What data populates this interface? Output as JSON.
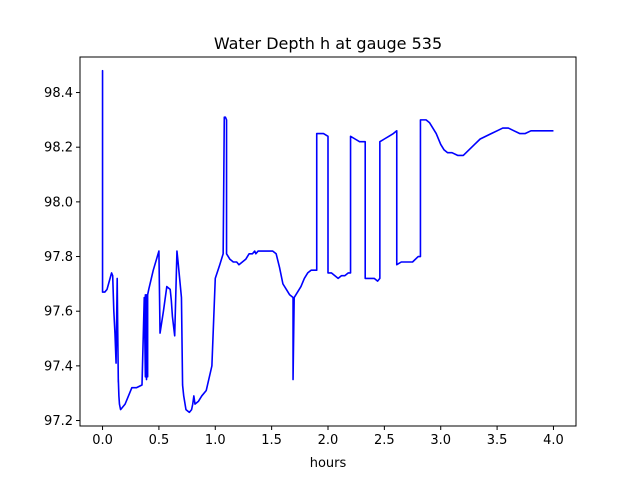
{
  "chart_data": {
    "type": "line",
    "title": "Water Depth h at gauge 535",
    "xlabel": "hours",
    "ylabel": "",
    "xlim": [
      -0.2,
      4.2
    ],
    "ylim": [
      97.18,
      98.53
    ],
    "xticks": [
      0.0,
      0.5,
      1.0,
      1.5,
      2.0,
      2.5,
      3.0,
      3.5,
      4.0
    ],
    "xtick_labels": [
      "0.0",
      "0.5",
      "1.0",
      "1.5",
      "2.0",
      "2.5",
      "3.0",
      "3.5",
      "4.0"
    ],
    "yticks": [
      97.2,
      97.4,
      97.6,
      97.8,
      98.0,
      98.2,
      98.4
    ],
    "ytick_labels": [
      "97.2",
      "97.4",
      "97.6",
      "97.8",
      "98.0",
      "98.2",
      "98.4"
    ],
    "grid": false,
    "series": [
      {
        "color": "#0000ff",
        "x": [
          0.0,
          0.0,
          0.0,
          0.0,
          0.01,
          0.02,
          0.04,
          0.06,
          0.08,
          0.09,
          0.1,
          0.11,
          0.12,
          0.13,
          0.135,
          0.14,
          0.14,
          0.145,
          0.15,
          0.16,
          0.18,
          0.2,
          0.23,
          0.26,
          0.3,
          0.35,
          0.37,
          0.38,
          0.38,
          0.39,
          0.39,
          0.4,
          0.4,
          0.41,
          0.45,
          0.5,
          0.51,
          0.51,
          0.54,
          0.57,
          0.6,
          0.61,
          0.62,
          0.64,
          0.66,
          0.66,
          0.67,
          0.7,
          0.71,
          0.71,
          0.72,
          0.74,
          0.77,
          0.79,
          0.8,
          0.81,
          0.82,
          0.85,
          0.88,
          0.92,
          0.97,
          1.0,
          1.0,
          1.04,
          1.07,
          1.08,
          1.09,
          1.1,
          1.1,
          1.13,
          1.16,
          1.19,
          1.21,
          1.24,
          1.27,
          1.3,
          1.33,
          1.35,
          1.36,
          1.38,
          1.4,
          1.42,
          1.45,
          1.48,
          1.51,
          1.54,
          1.57,
          1.6,
          1.63,
          1.66,
          1.69,
          1.69,
          1.7,
          1.7,
          1.73,
          1.76,
          1.79,
          1.82,
          1.85,
          1.88,
          1.9,
          1.9,
          1.92,
          1.96,
          2.0,
          2.0,
          2.03,
          2.06,
          2.09,
          2.12,
          2.15,
          2.18,
          2.2,
          2.2,
          2.24,
          2.28,
          2.33,
          2.33,
          2.37,
          2.41,
          2.44,
          2.46,
          2.46,
          2.5,
          2.54,
          2.58,
          2.61,
          2.61,
          2.65,
          2.7,
          2.75,
          2.8,
          2.82,
          2.82,
          2.84,
          2.87,
          2.9,
          2.93,
          2.96,
          3.0,
          3.03,
          3.06,
          3.1,
          3.15,
          3.2,
          3.25,
          3.3,
          3.35,
          3.4,
          3.45,
          3.5,
          3.55,
          3.6,
          3.65,
          3.7,
          3.75,
          3.8,
          3.85,
          3.9,
          3.95,
          4.0
        ],
        "y": [
          97.99,
          98.48,
          98.1,
          97.67,
          97.67,
          97.67,
          97.68,
          97.71,
          97.74,
          97.73,
          97.6,
          97.52,
          97.41,
          97.72,
          97.52,
          97.34,
          97.35,
          97.29,
          97.26,
          97.24,
          97.25,
          97.26,
          97.29,
          97.32,
          97.32,
          97.33,
          97.65,
          97.36,
          97.66,
          97.35,
          97.66,
          97.36,
          97.66,
          97.68,
          97.75,
          97.82,
          97.52,
          97.52,
          97.6,
          97.69,
          97.68,
          97.64,
          97.58,
          97.51,
          97.82,
          97.82,
          97.78,
          97.65,
          97.33,
          97.33,
          97.29,
          97.24,
          97.23,
          97.24,
          97.26,
          97.29,
          97.26,
          97.27,
          97.29,
          97.31,
          97.4,
          97.72,
          97.72,
          97.77,
          97.81,
          98.31,
          98.31,
          98.3,
          97.81,
          97.79,
          97.78,
          97.78,
          97.77,
          97.78,
          97.79,
          97.81,
          97.81,
          97.82,
          97.81,
          97.82,
          97.82,
          97.82,
          97.82,
          97.82,
          97.82,
          97.81,
          97.76,
          97.7,
          97.68,
          97.66,
          97.65,
          97.35,
          97.65,
          97.65,
          97.67,
          97.69,
          97.72,
          97.74,
          97.75,
          97.75,
          97.75,
          98.25,
          98.25,
          98.25,
          98.24,
          97.74,
          97.74,
          97.73,
          97.72,
          97.73,
          97.73,
          97.74,
          97.74,
          98.24,
          98.23,
          98.22,
          98.22,
          97.72,
          97.72,
          97.72,
          97.71,
          97.72,
          98.22,
          98.23,
          98.24,
          98.25,
          98.26,
          97.77,
          97.78,
          97.78,
          97.78,
          97.8,
          97.8,
          98.3,
          98.3,
          98.3,
          98.29,
          98.27,
          98.25,
          98.21,
          98.19,
          98.18,
          98.18,
          98.17,
          98.17,
          98.19,
          98.21,
          98.23,
          98.24,
          98.25,
          98.26,
          98.27,
          98.27,
          98.26,
          98.25,
          98.25,
          98.26,
          98.26,
          98.26,
          98.26,
          98.26
        ]
      }
    ]
  }
}
